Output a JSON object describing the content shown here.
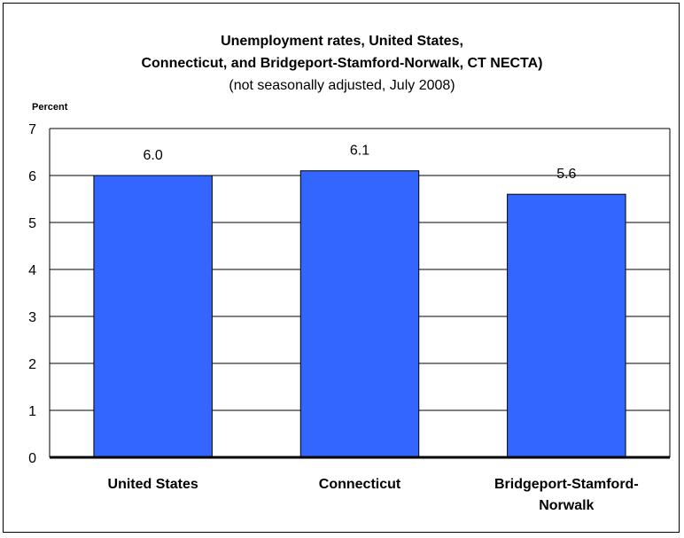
{
  "chart_data": {
    "type": "bar",
    "title_lines": [
      "Unemployment rates, United States,",
      "Connecticut, and Bridgeport-Stamford-Norwalk, CT NECTA)"
    ],
    "subtitle": "(not seasonally adjusted, July 2008)",
    "ylabel": "Percent",
    "xlabel": "",
    "categories": [
      "United States",
      "Connecticut",
      "Bridgeport-Stamford-Norwalk"
    ],
    "category_label_lines": [
      [
        "United States"
      ],
      [
        "Connecticut"
      ],
      [
        "Bridgeport-Stamford-",
        "Norwalk"
      ]
    ],
    "values": [
      6.0,
      6.1,
      5.6
    ],
    "value_labels": [
      "6.0",
      "6.1",
      "5.6"
    ],
    "ylim": [
      0,
      7
    ],
    "yticks": [
      "0",
      "1",
      "2",
      "3",
      "4",
      "5",
      "6",
      "7"
    ],
    "grid": true,
    "legend": "none",
    "colors": {
      "bar": "#3366FF",
      "bar_stroke": "#000000",
      "grid": "#000000",
      "text": "#000000"
    }
  }
}
